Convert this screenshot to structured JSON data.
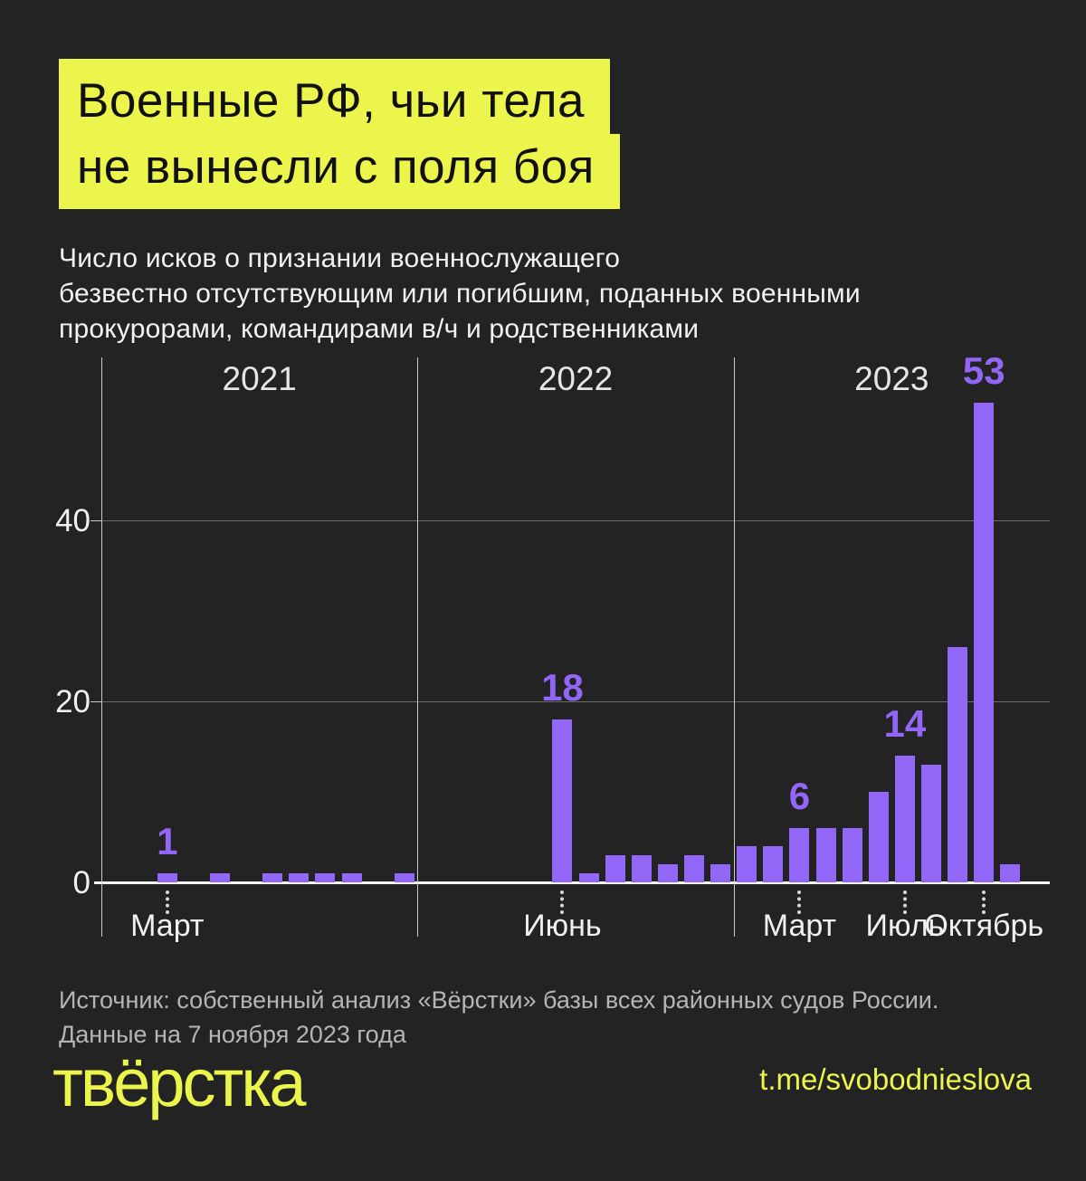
{
  "header": {
    "title_lines": [
      "Военные РФ, чьи тела",
      "не вынесли с поля боя"
    ],
    "subtitle_lines": [
      "Число исков о признании военнослужащего",
      "безвестно отсутствующим или погибшим, поданных военными",
      "прокурорами, командирами в/ч и родственниками"
    ]
  },
  "chart_data": {
    "type": "bar",
    "title": "Число исков о признании военнослужащего безвестно отсутствующим или погибшим, поданных военными прокурорами, командирами в/ч и родственниками",
    "bar_color": "#9266f6",
    "ylim": [
      0,
      55
    ],
    "yticks": [
      0,
      20,
      40
    ],
    "grid": true,
    "x_unit": "месяцы, январь 2021 — декабрь 2023",
    "year_groups": [
      {
        "label": "2021",
        "values": [
          0,
          0,
          1,
          0,
          1,
          0,
          1,
          1,
          1,
          1,
          0,
          1
        ]
      },
      {
        "label": "2022",
        "values": [
          0,
          0,
          0,
          0,
          0,
          18,
          1,
          3,
          3,
          2,
          3,
          2
        ]
      },
      {
        "label": "2023",
        "values": [
          4,
          4,
          6,
          6,
          6,
          10,
          14,
          13,
          26,
          53,
          2,
          null
        ]
      }
    ],
    "value_labels": [
      {
        "year_index": 0,
        "month_index": 2,
        "text": "1"
      },
      {
        "year_index": 1,
        "month_index": 5,
        "text": "18"
      },
      {
        "year_index": 2,
        "month_index": 2,
        "text": "6"
      },
      {
        "year_index": 2,
        "month_index": 6,
        "text": "14"
      },
      {
        "year_index": 2,
        "month_index": 9,
        "text": "53"
      }
    ],
    "month_tick_labels": [
      {
        "year_index": 0,
        "month_index": 2,
        "label": "Март"
      },
      {
        "year_index": 1,
        "month_index": 5,
        "label": "Июнь"
      },
      {
        "year_index": 2,
        "month_index": 2,
        "label": "Март"
      },
      {
        "year_index": 2,
        "month_index": 6,
        "label": "Июль"
      },
      {
        "year_index": 2,
        "month_index": 9,
        "label": "Октябрь"
      }
    ]
  },
  "footer": {
    "source_lines": [
      "Источник: собственный анализ «Вёрстки» базы всех районных судов России.",
      "Данные на 7 ноября 2023 года"
    ],
    "logo_text": "твёрстка",
    "telegram_link": "t.me/svobodnieslova"
  },
  "colors": {
    "background": "#232323",
    "accent_yellow": "#ecf54b",
    "bar_purple": "#9266f6",
    "text_white": "#f2f2f2",
    "text_gray": "#b5b5b5"
  }
}
